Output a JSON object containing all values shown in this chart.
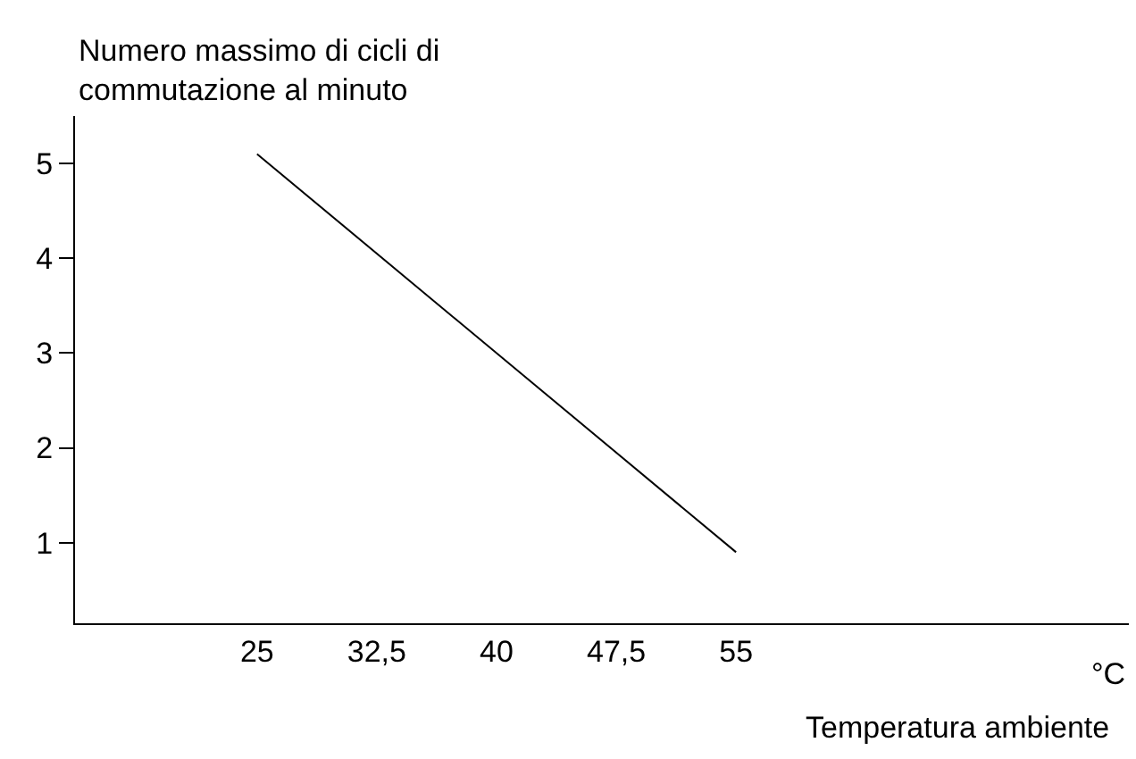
{
  "chart_data": {
    "type": "line",
    "ylabel": "Numero massimo di cicli di\ncommutazione al minuto",
    "xlabel": "Temperatura ambiente",
    "annotations": [
      "°C"
    ],
    "x": [
      25,
      55
    ],
    "series": [
      {
        "color": "#000000",
        "values": [
          5.1,
          0.9
        ]
      }
    ],
    "xlim": [
      13.6,
      79.6
    ],
    "xticks": [
      25,
      {
        "value": 32.5,
        "label": "32,5"
      },
      40,
      {
        "value": 47.5,
        "label": "47,5"
      },
      55
    ],
    "ylim": [
      0.15,
      5.5
    ],
    "yticks": [
      1,
      2,
      3,
      4,
      5
    ],
    "legend": false,
    "marker": "none",
    "line_style": "solid"
  }
}
